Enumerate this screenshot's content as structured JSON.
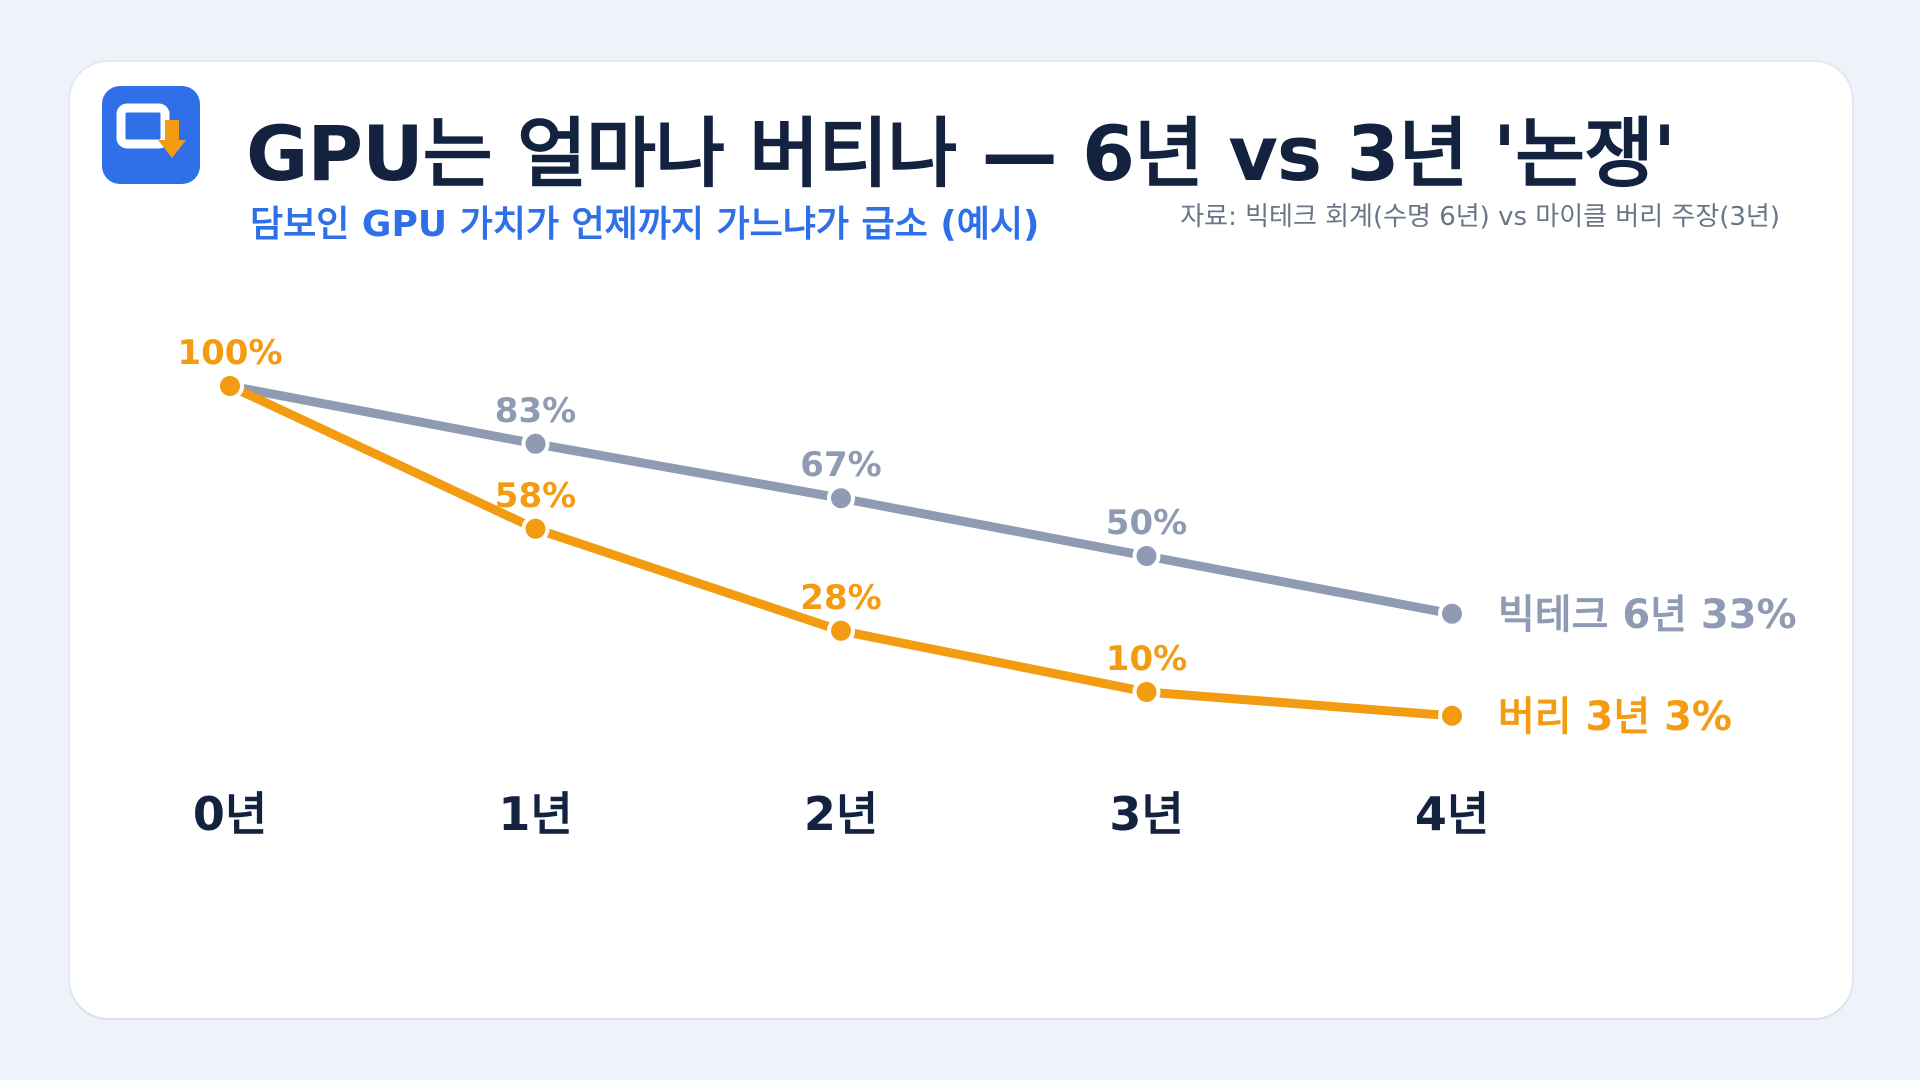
{
  "header": {
    "title": "GPU는 얼마나 버티나 — 6년 vs 3년 '논쟁'",
    "subtitle": "담보인 GPU 가치가 언제까지 가느냐가 급소 (예시)",
    "source": "자료: 빅테크 회계(수명 6년) vs 마이클 버리 주장(3년)",
    "logo_icon": "download-monitor-icon"
  },
  "colors": {
    "background": "#eef2f9",
    "card": "#ffffff",
    "title": "#13223f",
    "accent_blue": "#2f6fe8",
    "bigtech_gray": "#8f9bb3",
    "burry_orange": "#f39c12"
  },
  "chart_data": {
    "type": "line",
    "categories": [
      "0년",
      "1년",
      "2년",
      "3년",
      "4년"
    ],
    "ylim": [
      0,
      100
    ],
    "grid": false,
    "legend": "inline-right",
    "series": [
      {
        "name": "빅테크 6년",
        "end_label": "빅테크 6년 33%",
        "color": "#8f9bb3",
        "values": [
          100,
          83,
          67,
          50,
          33
        ],
        "point_labels": [
          "",
          "83%",
          "67%",
          "50%",
          ""
        ]
      },
      {
        "name": "버리 3년",
        "end_label": "버리 3년 3%",
        "color": "#f39c12",
        "values": [
          100,
          58,
          28,
          10,
          3
        ],
        "point_labels": [
          "100%",
          "58%",
          "28%",
          "10%",
          ""
        ]
      }
    ]
  }
}
